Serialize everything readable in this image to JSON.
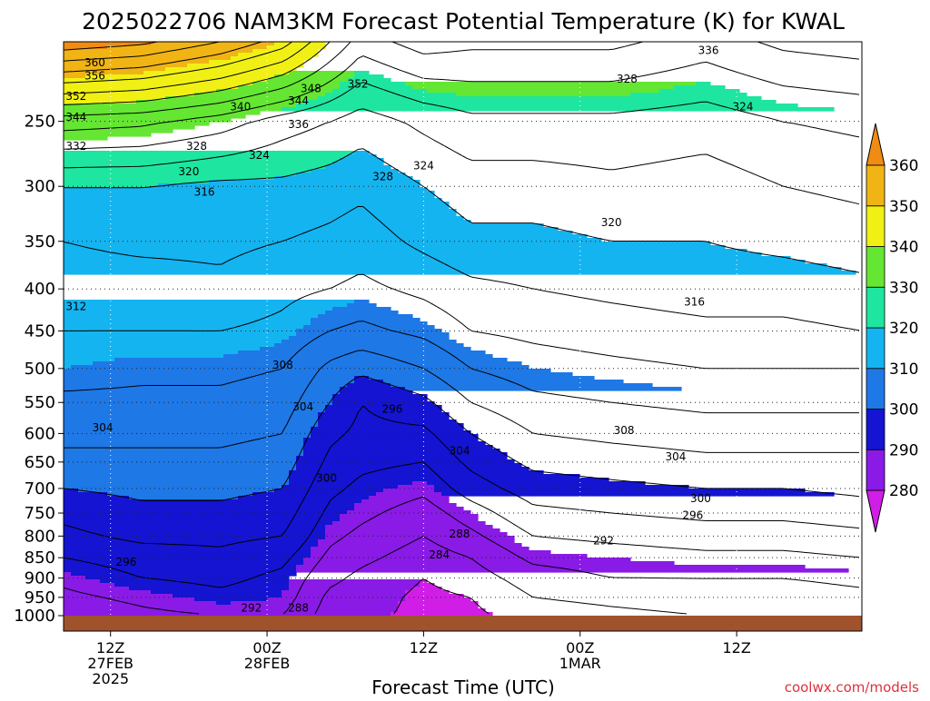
{
  "chart_data": {
    "type": "heatmap",
    "title": "2025022706 NAM3KM Forecast Potential Temperature (K) for KWAL",
    "xlabel": "Forecast Time (UTC)",
    "ylabel": "",
    "credit": "coolwx.com/models",
    "y_axis": {
      "scale": "log-pressure",
      "range": [
        1000,
        200
      ],
      "ticks": [
        250,
        300,
        350,
        400,
        450,
        500,
        550,
        600,
        650,
        700,
        750,
        800,
        850,
        900,
        950,
        1000
      ]
    },
    "x_axis": {
      "range_hours": [
        3,
        54
      ],
      "ticks": [
        {
          "hour": 6,
          "lines": [
            "12Z",
            "27FEB",
            "2025"
          ]
        },
        {
          "hour": 16,
          "lines": [
            "00Z",
            "28FEB"
          ]
        },
        {
          "hour": 26,
          "lines": [
            "12Z"
          ]
        },
        {
          "hour": 36,
          "lines": [
            "00Z",
            "1MAR"
          ]
        },
        {
          "hour": 46,
          "lines": [
            "12Z"
          ]
        }
      ]
    },
    "grid": true,
    "colorbar": {
      "placement": "right",
      "ticks": [
        280,
        290,
        300,
        310,
        320,
        330,
        340,
        350,
        360
      ],
      "bins": [
        {
          "from": 270,
          "to": 280,
          "color": "#d01ee6"
        },
        {
          "from": 280,
          "to": 290,
          "color": "#8a1ae6"
        },
        {
          "from": 290,
          "to": 300,
          "color": "#1414d2"
        },
        {
          "from": 300,
          "to": 310,
          "color": "#1e78e6"
        },
        {
          "from": 310,
          "to": 320,
          "color": "#14b4f0"
        },
        {
          "from": 320,
          "to": 330,
          "color": "#1ee6a0"
        },
        {
          "from": 330,
          "to": 340,
          "color": "#64e632"
        },
        {
          "from": 340,
          "to": 350,
          "color": "#f0f014"
        },
        {
          "from": 350,
          "to": 360,
          "color": "#f0b414"
        },
        {
          "from": 360,
          "to": 370,
          "color": "#f08c14"
        }
      ]
    },
    "profiles": {
      "pressures": [
        1000,
        950,
        900,
        850,
        800,
        750,
        700,
        650,
        600,
        550,
        500,
        450,
        400,
        350,
        300,
        250,
        200
      ],
      "times": [
        3,
        8,
        13,
        17,
        20,
        22,
        26,
        29,
        33,
        38,
        44,
        49,
        54
      ],
      "theta": [
        [
          285,
          287,
          289,
          292,
          295,
          297,
          300,
          303,
          305,
          307,
          310,
          312,
          314,
          316,
          320,
          334,
          363
        ],
        [
          287,
          289,
          292,
          294,
          297,
          299,
          301,
          303,
          305,
          307,
          309,
          312,
          314,
          317,
          320,
          333,
          361
        ],
        [
          288,
          291,
          293,
          295,
          297,
          299,
          301,
          303,
          305,
          307,
          309,
          312,
          315,
          317,
          319,
          330,
          356
        ],
        [
          288,
          290,
          291,
          293,
          296,
          298,
          300,
          302,
          304,
          306,
          308,
          311,
          313,
          316,
          319,
          326,
          350
        ],
        [
          282,
          283,
          285,
          287,
          289,
          291,
          293,
          295,
          297,
          300,
          303,
          308,
          312,
          315,
          318,
          324,
          340
        ],
        [
          281,
          282,
          283,
          285,
          287,
          289,
          291,
          293,
          295,
          296,
          301,
          307,
          311,
          314,
          317,
          322,
          334
        ],
        [
          279,
          279,
          280,
          282,
          284,
          286,
          289,
          292,
          295,
          299,
          304,
          309,
          313,
          317,
          320,
          325,
          338
        ],
        [
          279,
          280,
          282,
          284,
          287,
          290,
          294,
          297,
          300,
          304,
          308,
          312,
          315,
          319,
          322,
          327,
          337
        ],
        [
          282,
          284,
          286,
          289,
          292,
          295,
          298,
          301,
          304,
          307,
          310,
          313,
          316,
          319,
          322,
          327,
          337
        ],
        [
          283,
          285,
          288,
          290,
          293,
          296,
          299,
          302,
          305,
          308,
          311,
          314,
          317,
          320,
          323,
          327,
          337
        ],
        [
          284,
          286,
          288,
          291,
          294,
          297,
          300,
          303,
          306,
          309,
          312,
          315,
          318,
          320,
          322,
          326,
          334
        ],
        [
          284,
          286,
          288,
          291,
          294,
          297,
          300,
          303,
          306,
          309,
          312,
          315,
          318,
          321,
          324,
          328,
          337
        ],
        [
          285,
          287,
          289,
          292,
          295,
          298,
          301,
          303,
          306,
          309,
          312,
          316,
          319,
          322,
          325,
          329,
          338
        ]
      ]
    },
    "contour_labels": [
      {
        "value": "360",
        "hour": 5.0,
        "pressure": 212
      },
      {
        "value": "356",
        "hour": 5.0,
        "pressure": 220
      },
      {
        "value": "352",
        "hour": 3.8,
        "pressure": 233
      },
      {
        "value": "344",
        "hour": 3.8,
        "pressure": 247
      },
      {
        "value": "332",
        "hour": 3.8,
        "pressure": 268
      },
      {
        "value": "328",
        "hour": 11.5,
        "pressure": 268
      },
      {
        "value": "320",
        "hour": 11.0,
        "pressure": 288
      },
      {
        "value": "316",
        "hour": 12.0,
        "pressure": 305
      },
      {
        "value": "324",
        "hour": 15.5,
        "pressure": 275
      },
      {
        "value": "340",
        "hour": 14.3,
        "pressure": 240
      },
      {
        "value": "344",
        "hour": 18.0,
        "pressure": 236
      },
      {
        "value": "348",
        "hour": 18.8,
        "pressure": 228
      },
      {
        "value": "352",
        "hour": 21.8,
        "pressure": 225
      },
      {
        "value": "336",
        "hour": 18.0,
        "pressure": 252
      },
      {
        "value": "328",
        "hour": 23.4,
        "pressure": 292
      },
      {
        "value": "324",
        "hour": 26.0,
        "pressure": 283
      },
      {
        "value": "336",
        "hour": 44.2,
        "pressure": 205
      },
      {
        "value": "328",
        "hour": 39.0,
        "pressure": 222
      },
      {
        "value": "324",
        "hour": 46.4,
        "pressure": 240
      },
      {
        "value": "320",
        "hour": 38.0,
        "pressure": 332
      },
      {
        "value": "316",
        "hour": 43.3,
        "pressure": 415
      },
      {
        "value": "312",
        "hour": 3.8,
        "pressure": 420
      },
      {
        "value": "308",
        "hour": 17.0,
        "pressure": 495
      },
      {
        "value": "304",
        "hour": 18.3,
        "pressure": 557
      },
      {
        "value": "296",
        "hour": 24.0,
        "pressure": 560
      },
      {
        "value": "304",
        "hour": 5.5,
        "pressure": 590
      },
      {
        "value": "304",
        "hour": 28.3,
        "pressure": 630
      },
      {
        "value": "308",
        "hour": 38.8,
        "pressure": 595
      },
      {
        "value": "304",
        "hour": 42.1,
        "pressure": 640
      },
      {
        "value": "300",
        "hour": 19.8,
        "pressure": 680
      },
      {
        "value": "300",
        "hour": 43.7,
        "pressure": 720
      },
      {
        "value": "296",
        "hour": 43.2,
        "pressure": 755
      },
      {
        "value": "288",
        "hour": 28.3,
        "pressure": 795
      },
      {
        "value": "292",
        "hour": 37.5,
        "pressure": 810
      },
      {
        "value": "284",
        "hour": 27.0,
        "pressure": 843
      },
      {
        "value": "296",
        "hour": 7.0,
        "pressure": 860
      },
      {
        "value": "292",
        "hour": 15.0,
        "pressure": 978
      },
      {
        "value": "288",
        "hour": 18.0,
        "pressure": 978
      }
    ]
  }
}
